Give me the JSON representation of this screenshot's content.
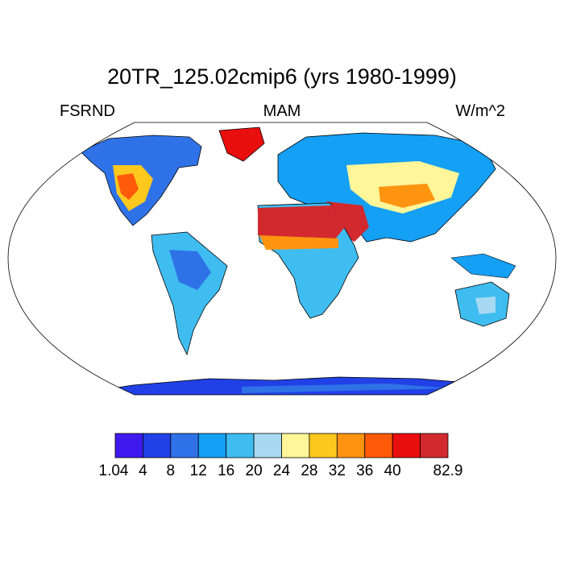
{
  "title": "20TR_125.02cmip6 (yrs 1980-1999)",
  "left_label": "FSRND",
  "center_label": "MAM",
  "right_label": "W/m^2",
  "colorbar": {
    "colors": [
      "#3f1aee",
      "#2141e6",
      "#2f72e8",
      "#14a0f5",
      "#3fbdf0",
      "#a7daf2",
      "#fff599",
      "#ffc81e",
      "#ff9411",
      "#ff5a0a",
      "#e90f0f",
      "#d2292f"
    ],
    "labels": [
      "1.04",
      "4",
      "8",
      "12",
      "16",
      "20",
      "24",
      "28",
      "32",
      "36",
      "40",
      "82.9"
    ],
    "label_positions": [
      0,
      1,
      2,
      3,
      4,
      5,
      6,
      7,
      8,
      9,
      10,
      12
    ]
  },
  "map": {
    "projection": "Robinson",
    "ocean_color": "#ffffff",
    "continent_outline": "#000000"
  }
}
